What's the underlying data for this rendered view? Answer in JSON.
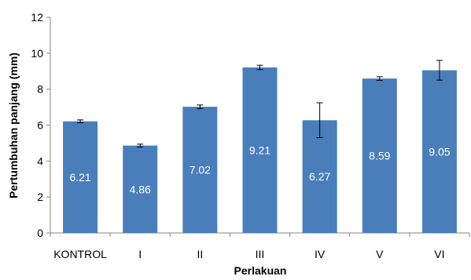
{
  "chart_data": {
    "type": "bar",
    "categories": [
      "KONTROL",
      "I",
      "II",
      "III",
      "IV",
      "V",
      "VI"
    ],
    "series": [
      {
        "values": [
          6.21,
          4.86,
          7.02,
          9.21,
          6.27,
          8.59,
          9.05
        ],
        "errors": [
          0.08,
          0.08,
          0.1,
          0.12,
          0.97,
          0.1,
          0.55
        ],
        "color": "#4a7ebb"
      }
    ],
    "data_labels": [
      "6.21",
      "4.86",
      "7.02",
      "9.21",
      "6.27",
      "8.59",
      "9.05"
    ],
    "xlabel": "Perlakuan",
    "ylabel": "Pertumbuhan panjang (mm)",
    "ylim": [
      0,
      12
    ],
    "yticks": [
      0,
      2,
      4,
      6,
      8,
      10,
      12
    ],
    "grid": false,
    "legend": "none"
  }
}
